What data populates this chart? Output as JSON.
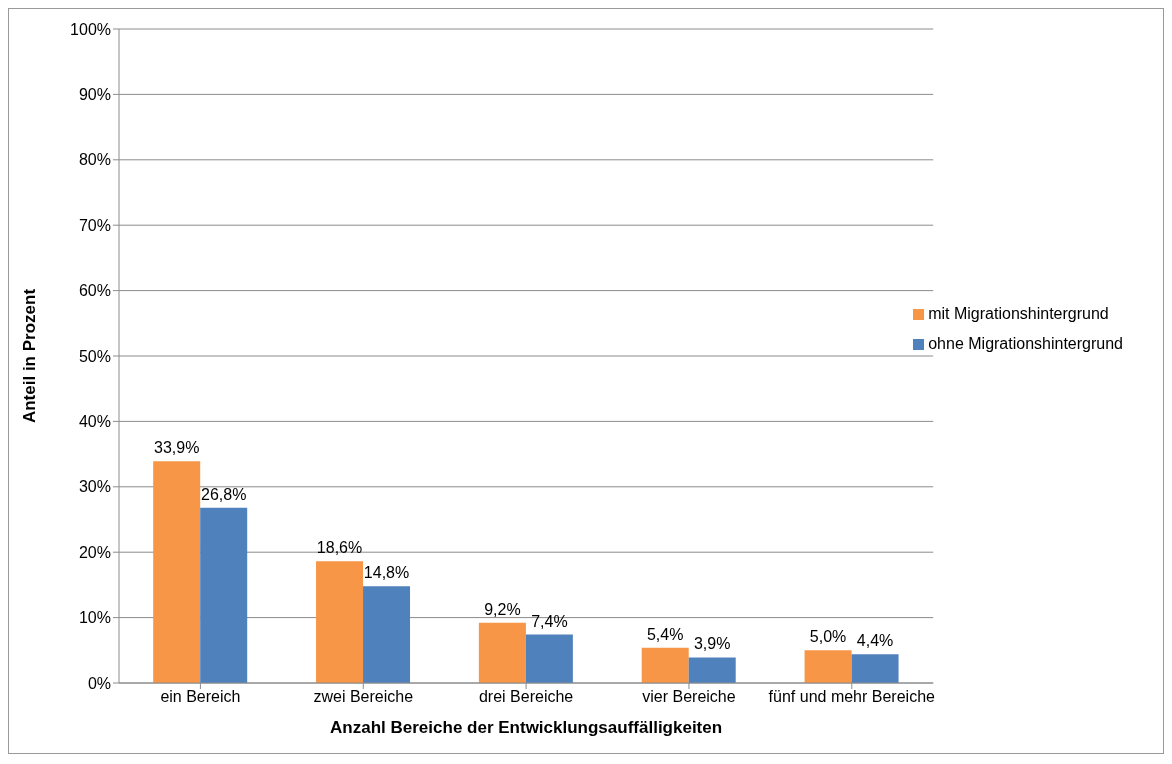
{
  "chart_data": {
    "type": "bar",
    "xlabel": "Anzahl Bereiche der Entwicklungsauffälligkeiten",
    "ylabel": "Anteil in Prozent",
    "categories": [
      "ein Bereich",
      "zwei Bereiche",
      "drei Bereiche",
      "vier Bereiche",
      "fünf und mehr Bereiche"
    ],
    "series": [
      {
        "name": "mit Migrationshintergrund",
        "color": "#f79646",
        "values": [
          33.9,
          18.6,
          9.2,
          5.4,
          5.0
        ],
        "value_labels": [
          "33,9%",
          "18,6%",
          "9,2%",
          "5,4%",
          "5,0%"
        ]
      },
      {
        "name": "ohne Migrationshintergrund",
        "color": "#4f81bd",
        "values": [
          26.8,
          14.8,
          7.4,
          3.9,
          4.4
        ],
        "value_labels": [
          "26,8%",
          "14,8%",
          "7,4%",
          "3,9%",
          "4,4%"
        ]
      }
    ],
    "ylim": [
      0,
      100
    ],
    "yticks": [
      {
        "value": 0,
        "label": "0%"
      },
      {
        "value": 10,
        "label": "10%"
      },
      {
        "value": 20,
        "label": "20%"
      },
      {
        "value": 30,
        "label": "30%"
      },
      {
        "value": 40,
        "label": "40%"
      },
      {
        "value": 50,
        "label": "50%"
      },
      {
        "value": 60,
        "label": "60%"
      },
      {
        "value": 70,
        "label": "70%"
      },
      {
        "value": 80,
        "label": "80%"
      },
      {
        "value": 90,
        "label": "90%"
      },
      {
        "value": 100,
        "label": "100%"
      }
    ],
    "grid": "y",
    "legend": "right"
  }
}
